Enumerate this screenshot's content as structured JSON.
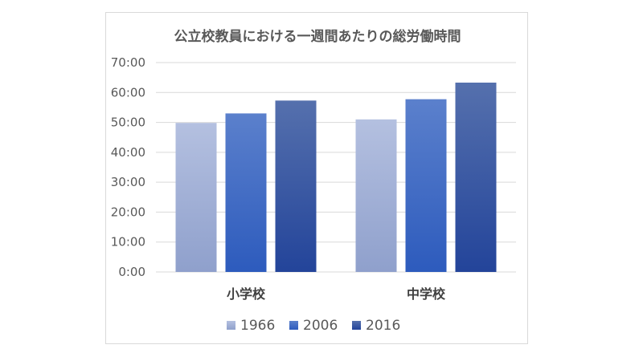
{
  "chart_data": {
    "type": "bar",
    "title": "公立校教員における一週間あたりの総労働時間",
    "xlabel": "",
    "ylabel": "",
    "categories": [
      "小学校",
      "中学校"
    ],
    "series": [
      {
        "name": "1966",
        "values": [
          49.83,
          51.0
        ],
        "color_top": "#b4c0e0",
        "color_bottom": "#8fa0cc"
      },
      {
        "name": "2006",
        "values": [
          53.0,
          57.75
        ],
        "color_top": "#5b80cc",
        "color_bottom": "#2d5bbd"
      },
      {
        "name": "2016",
        "values": [
          57.3,
          63.3
        ],
        "color_top": "#5570ad",
        "color_bottom": "#23449a"
      }
    ],
    "yticks": [
      "0:00",
      "10:00",
      "20:00",
      "30:00",
      "40:00",
      "50:00",
      "60:00",
      "70:00"
    ],
    "ylim": [
      0,
      70
    ],
    "grid": true,
    "legend_position": "bottom"
  }
}
